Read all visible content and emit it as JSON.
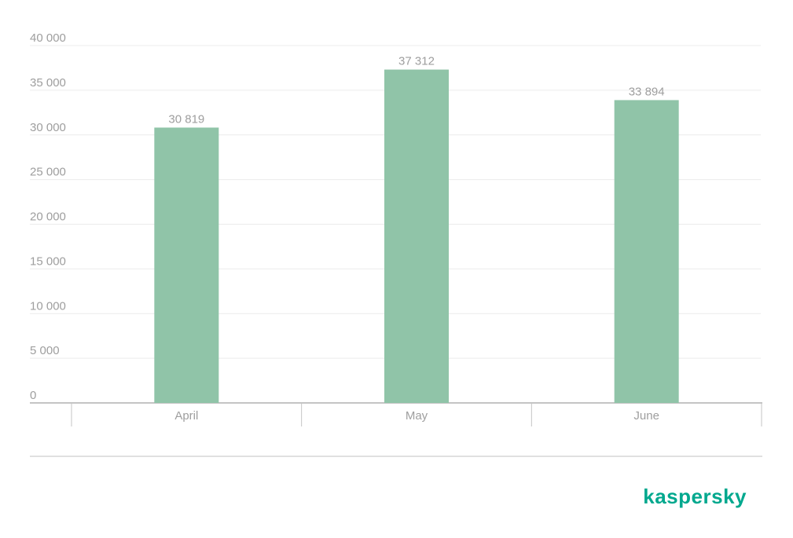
{
  "chart_data": {
    "type": "bar",
    "categories": [
      "April",
      "May",
      "June"
    ],
    "values": [
      30819,
      37312,
      33894
    ],
    "value_labels": [
      "30 819",
      "37 312",
      "33 894"
    ],
    "color": "#90c4a8",
    "ylim": [
      0,
      40000
    ],
    "yticks": [
      0,
      {
        "value": 5000,
        "label": "5 000"
      },
      {
        "value": 10000,
        "label": "10 000"
      },
      {
        "value": 15000,
        "label": "15 000"
      },
      {
        "value": 20000,
        "label": "20 000"
      },
      {
        "value": 25000,
        "label": "25 000"
      },
      {
        "value": 30000,
        "label": "30 000"
      },
      {
        "value": 35000,
        "label": "35 000"
      },
      {
        "value": 40000,
        "label": "40 000"
      }
    ],
    "grid": true
  },
  "logo": "kaspersky"
}
